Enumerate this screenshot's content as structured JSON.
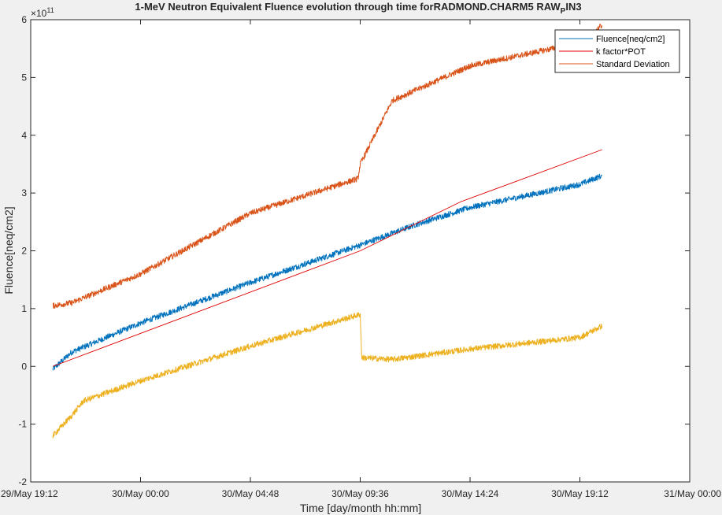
{
  "chart_data": {
    "type": "line",
    "title_main": "1-MeV Neutron Equivalent Fluence evolution through time forRADMOND.CHARM5 RAW",
    "title_sub": "P",
    "title_tail": "IN3",
    "xlabel": "Time [day/month hh:mm]",
    "ylabel": "Fluence[neq/cm2]",
    "y_exponent_base": "×10",
    "y_exponent_power": "11",
    "ylim": [
      -2,
      6
    ],
    "yticks": [
      -2,
      -1,
      0,
      1,
      2,
      3,
      4,
      5,
      6
    ],
    "ytick_labels": [
      "-2",
      "-1",
      "0",
      "1",
      "2",
      "3",
      "4",
      "5",
      "6"
    ],
    "xlim": [
      "29/May 19:12",
      "31/May 00:00"
    ],
    "xticks": [
      "29/May 19:12",
      "30/May 00:00",
      "30/May 04:48",
      "30/May 09:36",
      "30/May 14:24",
      "30/May 19:12",
      "31/May 00:00"
    ],
    "grid": false,
    "legend_position": "top-right",
    "series": [
      {
        "name": "Fluence[neq/cm2]",
        "color": "#0072bd",
        "noise": 0.1,
        "x": [
          "29/May 20:10",
          "29/May 21:00",
          "30/May 00:00",
          "30/May 04:48",
          "30/May 09:36",
          "30/May 12:00",
          "30/May 14:24",
          "30/May 19:12",
          "30/May 20:10"
        ],
        "y": [
          -0.05,
          0.25,
          0.75,
          1.45,
          2.1,
          2.45,
          2.75,
          3.15,
          3.3
        ]
      },
      {
        "name": "k factor*POT",
        "color": "#e00000",
        "noise": 0,
        "x": [
          "29/May 20:10",
          "30/May 09:36",
          "30/May 14:00",
          "30/May 20:10"
        ],
        "y": [
          0.0,
          2.0,
          2.85,
          3.75
        ]
      },
      {
        "name": "Standard Deviation",
        "color": "#d95319",
        "noise": 0.1,
        "x": [
          "29/May 20:10",
          "29/May 21:00",
          "30/May 00:00",
          "30/May 04:48",
          "30/May 09:30",
          "30/May 09:36",
          "30/May 11:00",
          "30/May 14:24",
          "30/May 19:12",
          "30/May 20:10"
        ],
        "y": [
          1.05,
          1.1,
          1.6,
          2.65,
          3.25,
          3.5,
          4.6,
          5.2,
          5.6,
          5.9
        ]
      },
      {
        "name": "",
        "color": "#edb120",
        "noise": 0.1,
        "x": [
          "29/May 20:10",
          "29/May 21:00",
          "29/May 21:30",
          "30/May 00:00",
          "30/May 04:48",
          "30/May 09:36",
          "30/May 09:40",
          "30/May 11:00",
          "30/May 14:24",
          "30/May 19:12",
          "30/May 20:10"
        ],
        "y": [
          -1.2,
          -0.85,
          -0.6,
          -0.25,
          0.35,
          0.9,
          0.15,
          0.12,
          0.3,
          0.5,
          0.7
        ]
      }
    ]
  }
}
